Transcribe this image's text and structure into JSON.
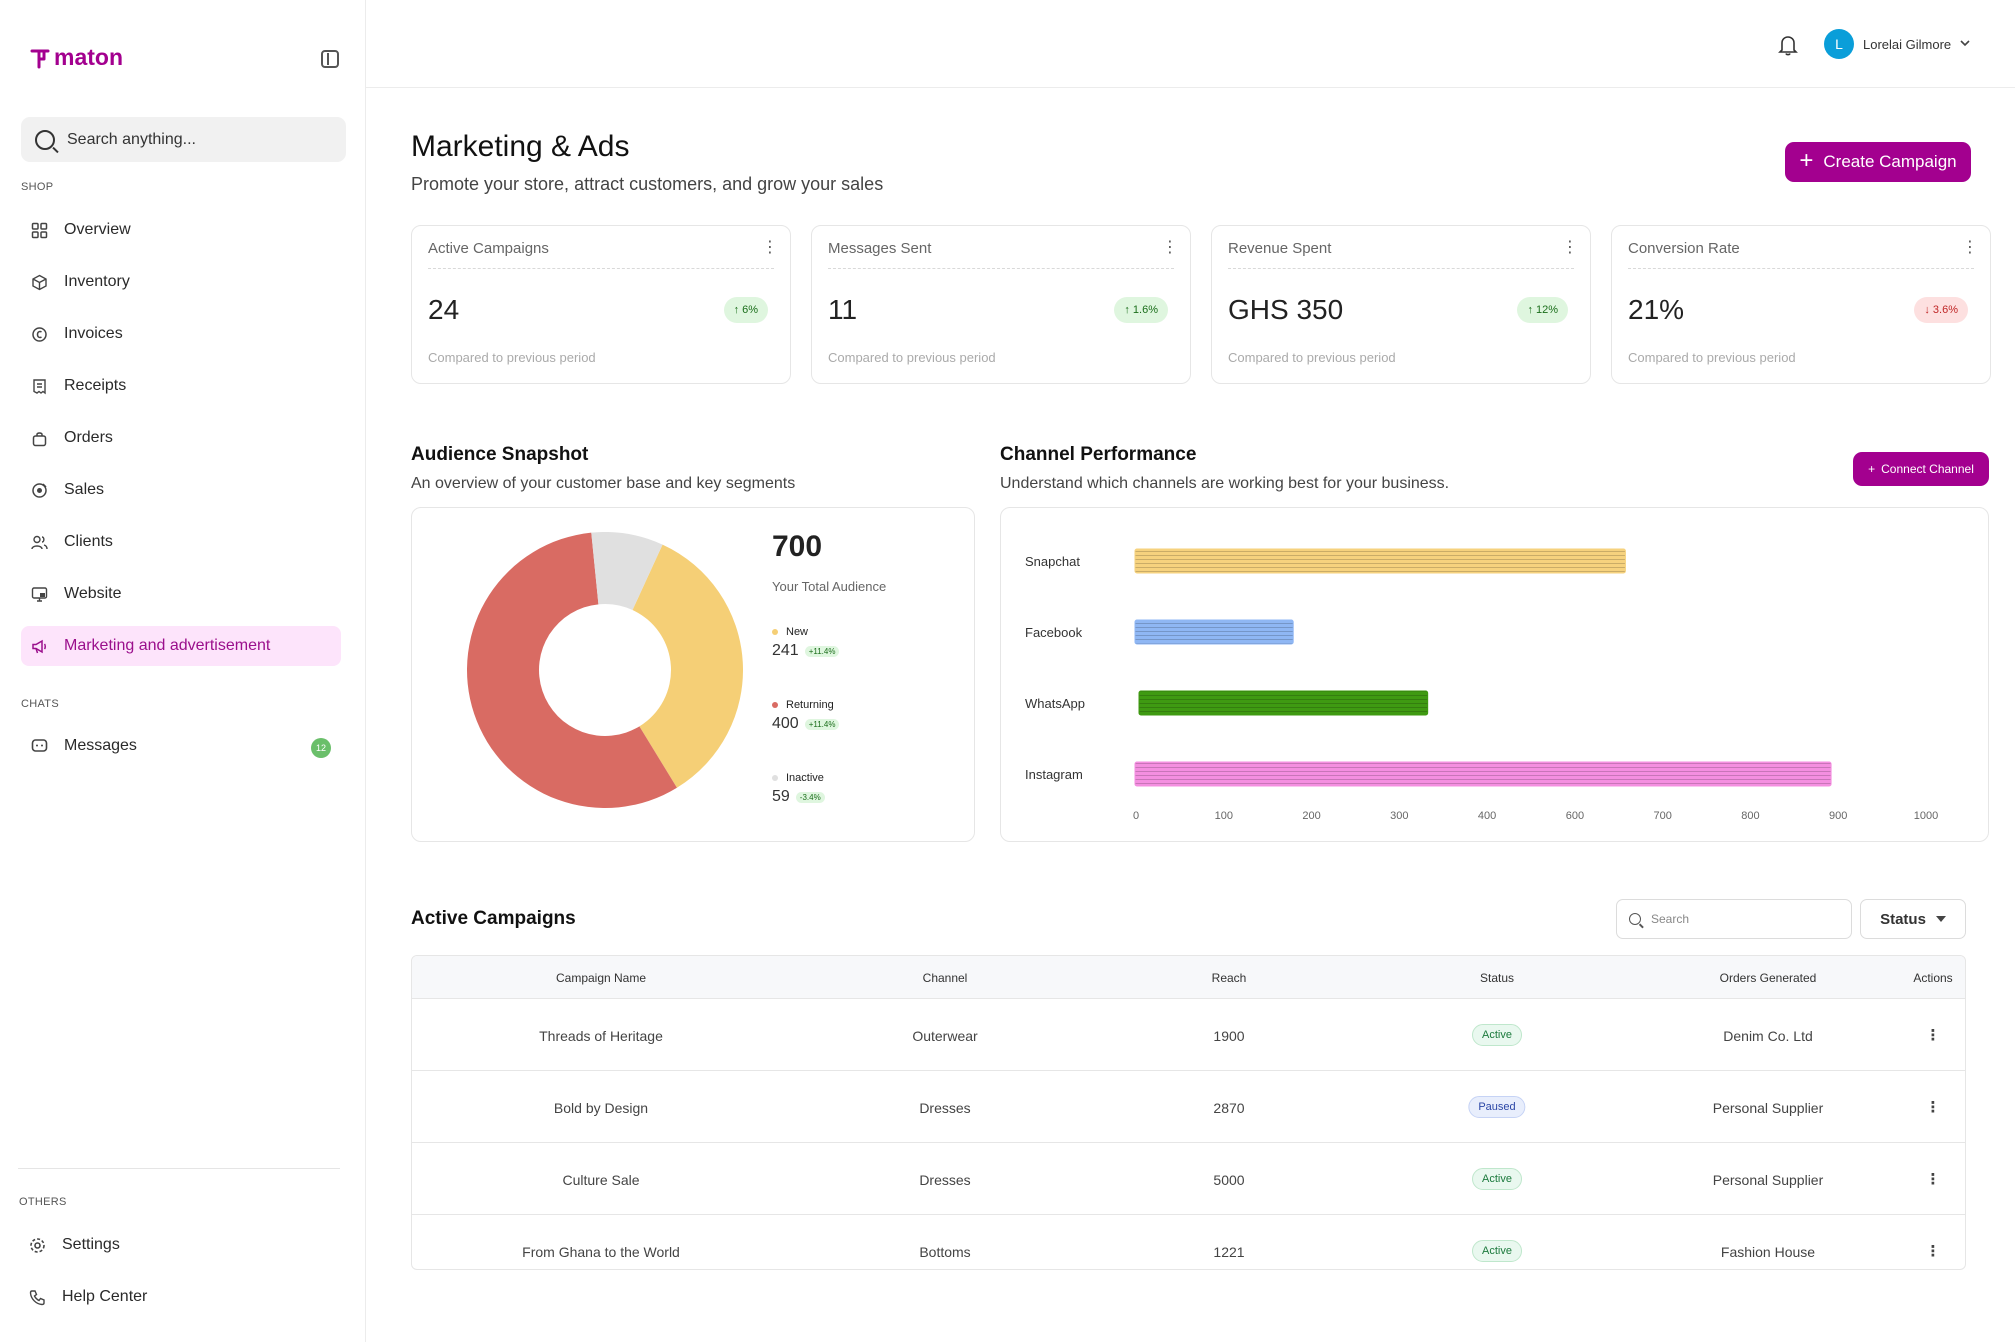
{
  "brand": {
    "name": "maton",
    "accent": "#a3008f"
  },
  "sidebar": {
    "search_placeholder": "Search anything...",
    "sections": {
      "shop": "SHOP",
      "chats": "CHATS",
      "others": "OTHERS"
    },
    "shop_items": [
      {
        "label": "Overview",
        "icon": "grid-icon"
      },
      {
        "label": "Inventory",
        "icon": "box-icon"
      },
      {
        "label": "Invoices",
        "icon": "invoice-icon"
      },
      {
        "label": "Receipts",
        "icon": "receipt-icon"
      },
      {
        "label": "Orders",
        "icon": "bag-icon"
      },
      {
        "label": "Sales",
        "icon": "sales-icon"
      },
      {
        "label": "Clients",
        "icon": "users-icon"
      },
      {
        "label": "Website",
        "icon": "monitor-icon"
      },
      {
        "label": "Marketing and advertisement",
        "icon": "megaphone-icon",
        "active": true
      }
    ],
    "chat_items": [
      {
        "label": "Messages",
        "icon": "chat-icon",
        "badge": "12"
      }
    ],
    "other_items": [
      {
        "label": "Settings",
        "icon": "gear-icon"
      },
      {
        "label": "Help Center",
        "icon": "phone-icon"
      }
    ]
  },
  "topbar": {
    "user": {
      "initial": "L",
      "name": "Lorelai Gilmore"
    }
  },
  "header": {
    "title": "Marketing & Ads",
    "subtitle": "Promote your store, attract customers, and grow your sales",
    "create_button": "Create Campaign"
  },
  "stats": [
    {
      "label": "Active Campaigns",
      "value": "24",
      "change": "6%",
      "direction": "up",
      "compare": "Compared to previous period"
    },
    {
      "label": "Messages Sent",
      "value": "11",
      "change": "1.6%",
      "direction": "up",
      "compare": "Compared to previous period"
    },
    {
      "label": "Revenue Spent",
      "value": "GHS 350",
      "change": "12%",
      "direction": "up",
      "compare": "Compared to previous period"
    },
    {
      "label": "Conversion Rate",
      "value": "21%",
      "change": "3.6%",
      "direction": "down",
      "compare": "Compared to previous period"
    }
  ],
  "audience": {
    "title": "Audience Snapshot",
    "subtitle": "An overview of your customer base and key segments",
    "total": "700",
    "total_label": "Your Total Audience",
    "segments": [
      {
        "name": "New",
        "value": 241,
        "change": "+11.4%",
        "color": "#f5cf76"
      },
      {
        "name": "Returning",
        "value": 400,
        "change": "+11.4%",
        "color": "#d96b63"
      },
      {
        "name": "Inactive",
        "value": 59,
        "change": "-3.4%",
        "color": "#e0e0e0"
      }
    ]
  },
  "channel": {
    "title": "Channel Performance",
    "subtitle": "Understand which channels are working best for your business.",
    "connect_button": "Connect Channel"
  },
  "chart_data": {
    "type": "bar",
    "orientation": "horizontal",
    "categories": [
      "Snapchat",
      "Facebook",
      "WhatsApp",
      "Instagram"
    ],
    "values": [
      620,
      200,
      370,
      880
    ],
    "colors": [
      "#f6d27e",
      "#8fb7f4",
      "#3f9a12",
      "#f48fe0"
    ],
    "x_ticks": [
      "0",
      "100",
      "200",
      "300",
      "400",
      "600",
      "700",
      "800",
      "900",
      "1000"
    ],
    "xlim": [
      0,
      1000
    ]
  },
  "campaigns": {
    "title": "Active Campaigns",
    "search_placeholder": "Search",
    "status_filter": "Status",
    "columns": [
      "Campaign Name",
      "Channel",
      "Reach",
      "Status",
      "Orders Generated",
      "Actions"
    ],
    "rows": [
      {
        "name": "Threads of Heritage",
        "channel": "Outerwear",
        "reach": "1900",
        "status": "Active",
        "orders": "Denim Co. Ltd"
      },
      {
        "name": "Bold by Design",
        "channel": "Dresses",
        "reach": "2870",
        "status": "Paused",
        "orders": "Personal Supplier"
      },
      {
        "name": "Culture Sale",
        "channel": "Dresses",
        "reach": "5000",
        "status": "Active",
        "orders": "Personal Supplier"
      },
      {
        "name": "From Ghana to the World",
        "channel": "Bottoms",
        "reach": "1221",
        "status": "Active",
        "orders": "Fashion House"
      }
    ]
  }
}
